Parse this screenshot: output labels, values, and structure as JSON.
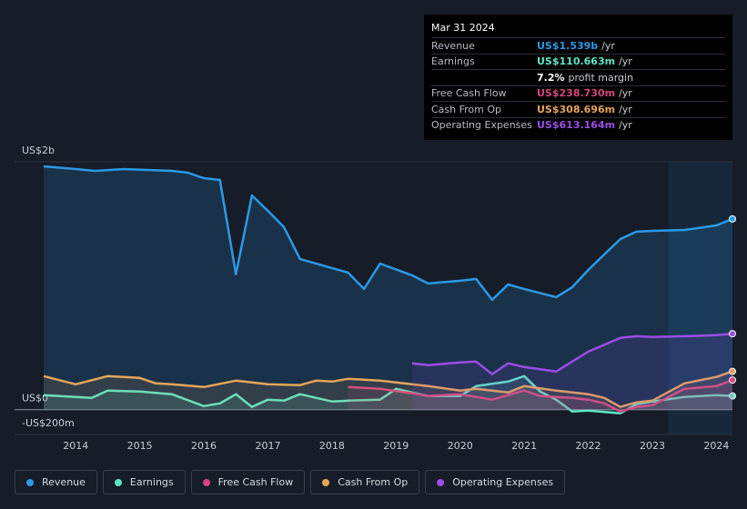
{
  "chart_data": {
    "type": "line",
    "xlim": [
      2013.5,
      2024.25
    ],
    "ylim": [
      -200,
      2000
    ],
    "xticks": [
      2014,
      2015,
      2016,
      2017,
      2018,
      2019,
      2020,
      2021,
      2022,
      2023,
      2024
    ],
    "yticks": [
      {
        "value": 2000,
        "label": "US$2b"
      },
      {
        "value": 0,
        "label": "US$0"
      },
      {
        "value": -200,
        "label": "-US$200m"
      }
    ],
    "series": [
      {
        "name": "Revenue",
        "color": "#2b9ae6",
        "x": [
          2013.5,
          2014,
          2014.3,
          2014.75,
          2015.5,
          2015.75,
          2016,
          2016.25,
          2016.5,
          2016.75,
          2017,
          2017.25,
          2017.5,
          2018,
          2018.25,
          2018.5,
          2018.75,
          2019.25,
          2019.5,
          2020,
          2020.25,
          2020.5,
          2020.75,
          2021,
          2021.5,
          2021.75,
          2022,
          2022.25,
          2022.5,
          2022.75,
          2023,
          2023.5,
          2024,
          2024.25
        ],
        "values": [
          1963,
          1941,
          1927,
          1941,
          1927,
          1912,
          1868,
          1853,
          1092,
          1729,
          1604,
          1473,
          1216,
          1143,
          1106,
          974,
          1179,
          1084,
          1018,
          1040,
          1055,
          886,
          1011,
          974,
          908,
          989,
          1128,
          1253,
          1377,
          1436,
          1443,
          1450,
          1487,
          1539
        ]
      },
      {
        "name": "Earnings",
        "color": "#5ee6c8",
        "x": [
          2013.5,
          2014,
          2014.25,
          2014.5,
          2015,
          2015.5,
          2016,
          2016.25,
          2016.5,
          2016.75,
          2017,
          2017.25,
          2017.5,
          2018,
          2018.25,
          2018.75,
          2019,
          2019.5,
          2020,
          2020.25,
          2020.75,
          2021,
          2021.25,
          2021.5,
          2021.75,
          2022,
          2022.5,
          2022.75,
          2023,
          2023.5,
          2024,
          2024.25
        ],
        "values": [
          117,
          103,
          95,
          154,
          146,
          125,
          29,
          51,
          125,
          22,
          81,
          73,
          125,
          66,
          73,
          81,
          168,
          110,
          110,
          190,
          227,
          271,
          146,
          81,
          -15,
          -7,
          -29,
          44,
          66,
          103,
          117,
          111
        ]
      },
      {
        "name": "Free Cash Flow",
        "color": "#d4467f",
        "x": [
          2018.25,
          2018.75,
          2019.25,
          2019.5,
          2020,
          2020.5,
          2021,
          2021.25,
          2021.75,
          2022,
          2022.25,
          2022.5,
          2022.75,
          2023,
          2023.5,
          2024,
          2024.25
        ],
        "values": [
          183,
          168,
          132,
          110,
          125,
          81,
          154,
          110,
          95,
          81,
          51,
          -15,
          22,
          37,
          168,
          190,
          239
        ]
      },
      {
        "name": "Cash From Op",
        "color": "#e6a55a",
        "x": [
          2013.5,
          2014,
          2014.5,
          2015,
          2015.25,
          2015.5,
          2016,
          2016.5,
          2017,
          2017.5,
          2017.75,
          2018,
          2018.25,
          2018.75,
          2019,
          2019.5,
          2020,
          2020.25,
          2020.75,
          2021,
          2021.5,
          2022,
          2022.25,
          2022.5,
          2022.75,
          2023,
          2023.5,
          2024,
          2024.25
        ],
        "values": [
          271,
          205,
          271,
          256,
          212,
          205,
          183,
          234,
          205,
          198,
          234,
          227,
          249,
          234,
          220,
          190,
          154,
          168,
          139,
          190,
          154,
          125,
          95,
          22,
          59,
          73,
          212,
          264,
          309
        ]
      },
      {
        "name": "Operating Expenses",
        "color": "#9b4de6",
        "x": [
          2019.25,
          2019.5,
          2020,
          2020.25,
          2020.5,
          2020.75,
          2021,
          2021.5,
          2022,
          2022.5,
          2022.75,
          2023,
          2023.5,
          2024,
          2024.25
        ],
        "values": [
          374,
          359,
          381,
          388,
          286,
          374,
          344,
          308,
          469,
          579,
          593,
          586,
          593,
          601,
          613
        ]
      }
    ]
  },
  "tooltip": {
    "date": "Mar 31 2024",
    "rows": [
      {
        "label": "Revenue",
        "value": "US$1.539b",
        "unit": "/yr",
        "color": "#2b9ae6"
      },
      {
        "label": "Earnings",
        "value": "US$110.663m",
        "unit": "/yr",
        "color": "#5ee6c8"
      },
      {
        "label": null,
        "value": "7.2%",
        "unit": "profit margin",
        "color": "#ffffff"
      },
      {
        "label": "Free Cash Flow",
        "value": "US$238.730m",
        "unit": "/yr",
        "color": "#d4467f"
      },
      {
        "label": "Cash From Op",
        "value": "US$308.696m",
        "unit": "/yr",
        "color": "#e6a55a"
      },
      {
        "label": "Operating Expenses",
        "value": "US$613.164m",
        "unit": "/yr",
        "color": "#9b4de6"
      }
    ]
  }
}
